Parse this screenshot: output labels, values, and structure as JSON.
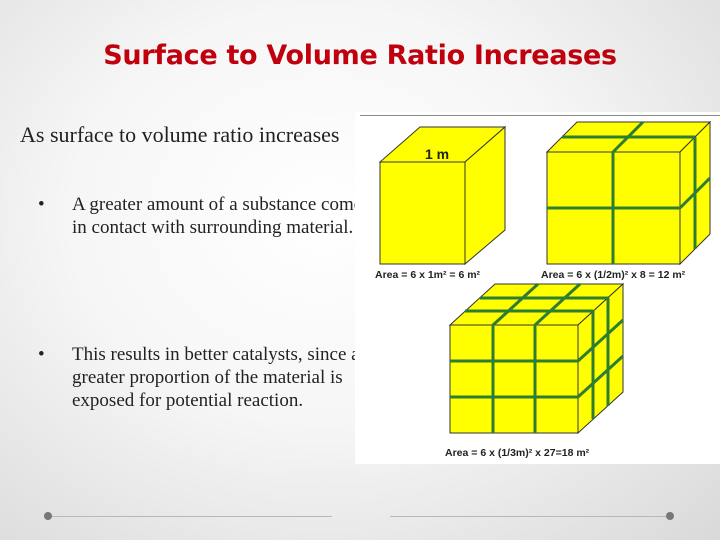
{
  "title": "Surface to Volume Ratio Increases",
  "lead": "As surface to volume ratio increases",
  "bullets": [
    "A greater amount of a substance comes in contact with surrounding material.",
    "This results in better catalysts, since a greater proportion of the material is exposed for potential reaction."
  ],
  "bullet_glyph": "•",
  "figure": {
    "cube_label": "1 m",
    "area1": "Area = 6 x 1m² = 6 m²",
    "area2": "Area = 6 x (1/2m)² x 8 = 12 m²",
    "area3": "Area = 6 x (1/3m)² x 27=18 m²"
  },
  "colors": {
    "title": "#c0000d",
    "cube_fill": "#ffff00",
    "divider_green": "#2e7d32"
  }
}
